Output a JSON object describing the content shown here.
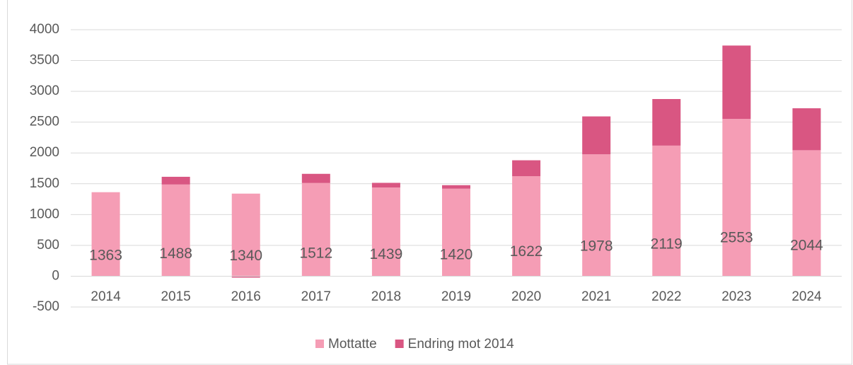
{
  "chart_data": {
    "type": "bar",
    "stacked": true,
    "categories": [
      "2014",
      "2015",
      "2016",
      "2017",
      "2018",
      "2019",
      "2020",
      "2021",
      "2022",
      "2023",
      "2024"
    ],
    "series": [
      {
        "name": "Mottatte",
        "color": "#f59db5",
        "values": [
          1363,
          1488,
          1340,
          1512,
          1439,
          1420,
          1622,
          1978,
          2119,
          2553,
          2044
        ]
      },
      {
        "name": "Endring mot 2014",
        "color": "#d95682",
        "values": [
          0,
          125,
          -23,
          149,
          76,
          57,
          259,
          615,
          756,
          1190,
          681
        ]
      }
    ],
    "ylim": [
      -500,
      4000
    ],
    "yticks": [
      -500,
      0,
      500,
      1000,
      1500,
      2000,
      2500,
      3000,
      3500,
      4000
    ],
    "grid": true,
    "legend": "bottom",
    "data_labels_series": 0
  }
}
